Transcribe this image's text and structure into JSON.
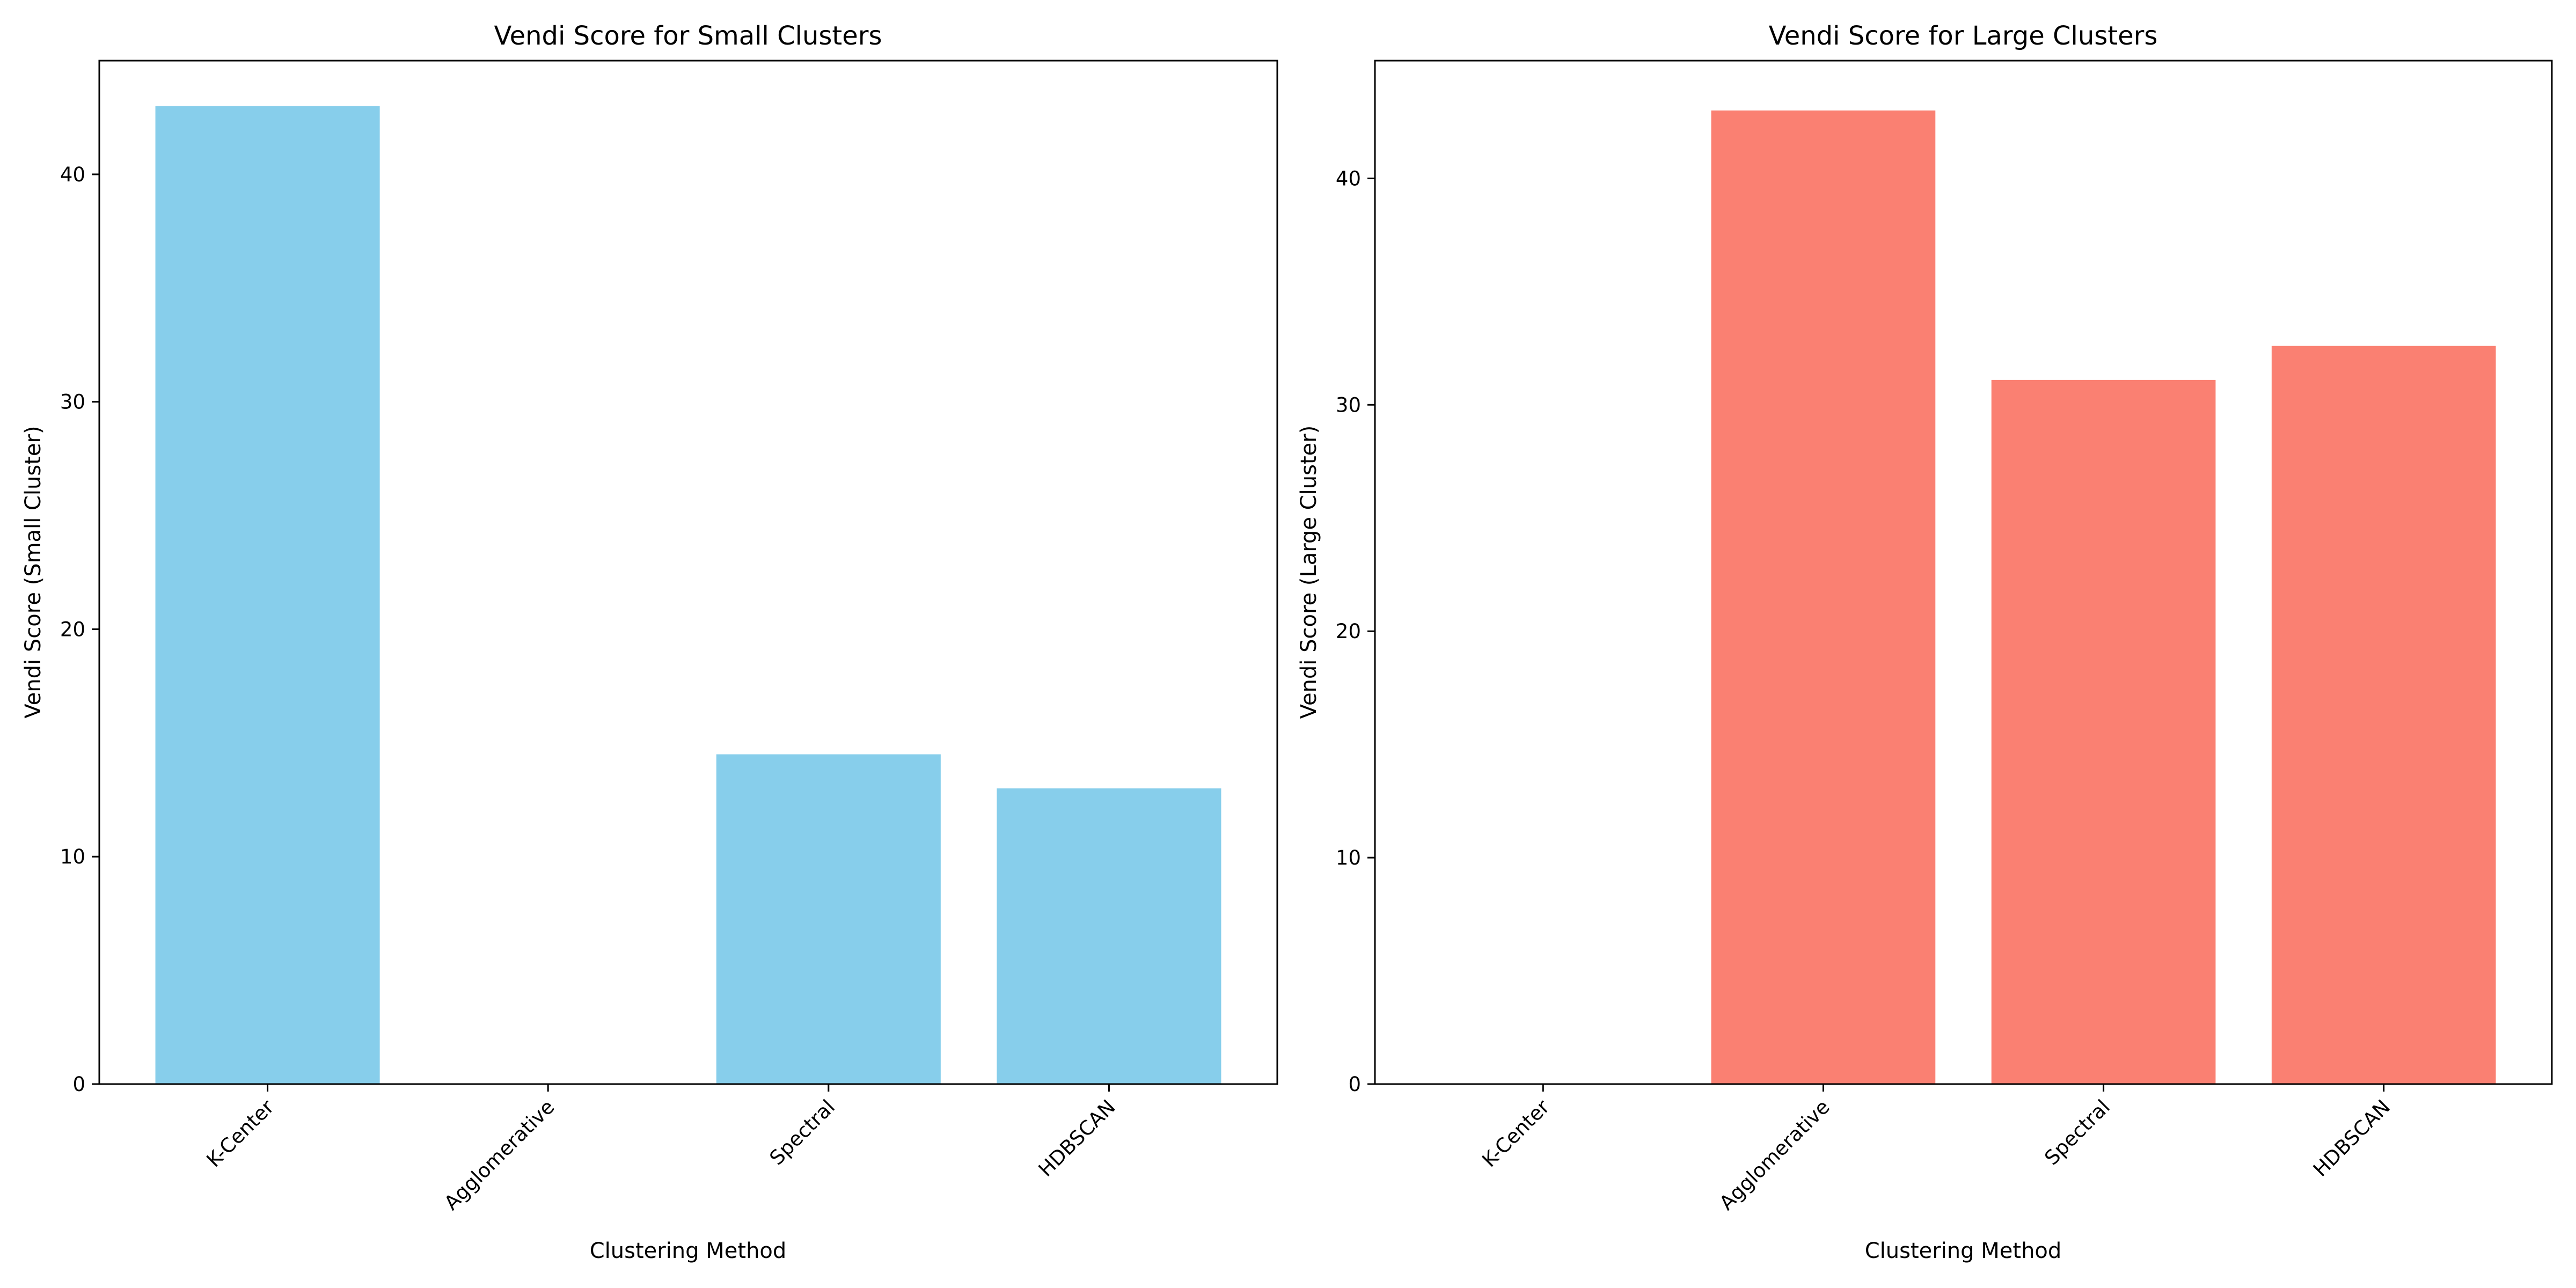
{
  "figure": {
    "background": "#ffffff"
  },
  "chart_data": [
    {
      "type": "bar",
      "title": "Vendi Score for Small Clusters",
      "xlabel": "Clustering Method",
      "ylabel": "Vendi Score (Small Cluster)",
      "categories": [
        "K-Center",
        "Agglomerative",
        "Spectral",
        "HDBSCAN"
      ],
      "values": [
        43.0,
        0,
        14.5,
        13.0
      ],
      "ylim": [
        0,
        45
      ],
      "yticks": [
        0,
        10,
        20,
        30,
        40
      ],
      "ytick_labels": [
        "0",
        "10",
        "20",
        "30",
        "40"
      ],
      "xtick_rotation_deg": 45,
      "color": "#87ceeb",
      "grid": false,
      "legend": "none"
    },
    {
      "type": "bar",
      "title": "Vendi Score for Large Clusters",
      "xlabel": "Clustering Method",
      "ylabel": "Vendi Score (Large Cluster)",
      "categories": [
        "K-Center",
        "Agglomerative",
        "Spectral",
        "HDBSCAN"
      ],
      "values": [
        0,
        43.0,
        31.1,
        32.6
      ],
      "ylim": [
        0,
        45.2
      ],
      "yticks": [
        0,
        10,
        20,
        30,
        40
      ],
      "ytick_labels": [
        "0",
        "10",
        "20",
        "30",
        "40"
      ],
      "xtick_rotation_deg": 45,
      "color": "#fa8072",
      "grid": false,
      "legend": "none"
    }
  ]
}
